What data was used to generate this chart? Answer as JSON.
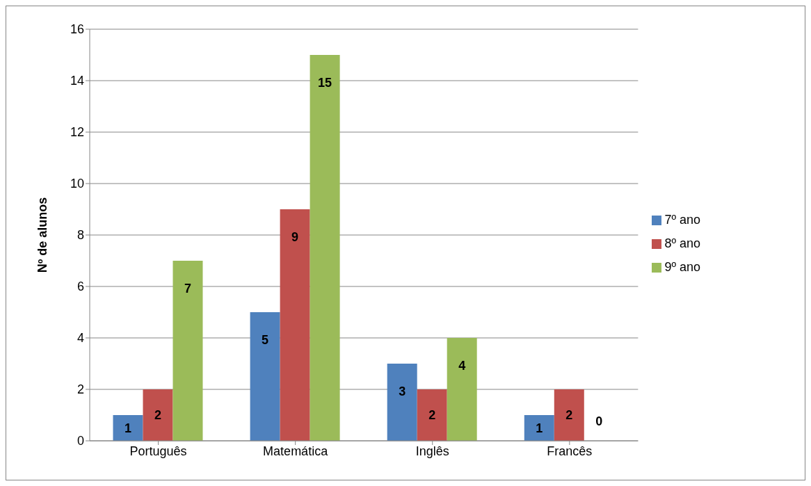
{
  "chart_data": {
    "type": "bar",
    "ylabel": "Nº de alunos",
    "categories": [
      "Português",
      "Matemática",
      "Inglês",
      "Francês"
    ],
    "series": [
      {
        "name": "7º ano",
        "color": "#4f81bd",
        "values": [
          1,
          5,
          3,
          1
        ]
      },
      {
        "name": "8º ano",
        "color": "#c0504d",
        "values": [
          2,
          9,
          2,
          2
        ]
      },
      {
        "name": "9º ano",
        "color": "#9bbb59",
        "values": [
          7,
          15,
          4,
          0
        ]
      }
    ],
    "ylim": [
      0,
      16
    ],
    "yticks": [
      0,
      2,
      4,
      6,
      8,
      10,
      12,
      14,
      16
    ],
    "grid": "y",
    "legend": "right",
    "data_labels": true
  }
}
